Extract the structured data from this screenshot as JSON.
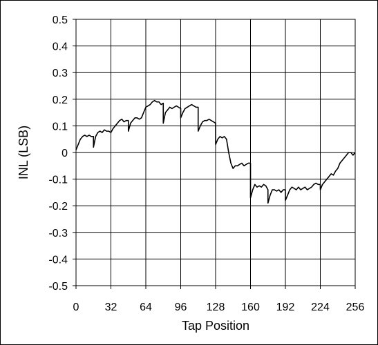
{
  "chart_data": {
    "type": "line",
    "title": "",
    "xlabel": "Tap Position",
    "ylabel": "INL (LSB)",
    "xlim": [
      0,
      256
    ],
    "ylim": [
      -0.5,
      0.5
    ],
    "grid": true,
    "xticks": [
      "0",
      "32",
      "64",
      "96",
      "128",
      "160",
      "192",
      "224",
      "256"
    ],
    "yticks": [
      "0.5",
      "0.4",
      "0.3",
      "0.2",
      "0.1",
      "0",
      "-0.1",
      "-0.2",
      "-0.3",
      "-0.4",
      "-0.5"
    ],
    "series": [
      {
        "name": "",
        "color": "#000000",
        "x": [
          0,
          2,
          4,
          6,
          8,
          10,
          12,
          14,
          16,
          16,
          18,
          20,
          22,
          24,
          26,
          28,
          30,
          32,
          34,
          36,
          38,
          40,
          42,
          44,
          46,
          48,
          48,
          50,
          52,
          54,
          56,
          58,
          60,
          62,
          64,
          66,
          68,
          70,
          72,
          74,
          76,
          78,
          80,
          80,
          82,
          84,
          86,
          88,
          90,
          92,
          94,
          96,
          96,
          98,
          100,
          102,
          104,
          106,
          108,
          110,
          112,
          112,
          114,
          116,
          118,
          120,
          122,
          124,
          126,
          128,
          128,
          130,
          132,
          134,
          136,
          138,
          140,
          142,
          144,
          146,
          148,
          150,
          152,
          154,
          156,
          158,
          160,
          160,
          162,
          164,
          166,
          168,
          170,
          172,
          174,
          176,
          176,
          178,
          180,
          182,
          184,
          186,
          188,
          190,
          192,
          192,
          194,
          196,
          198,
          200,
          202,
          204,
          206,
          208,
          210,
          212,
          214,
          216,
          218,
          220,
          222,
          224,
          224,
          226,
          228,
          230,
          232,
          234,
          236,
          238,
          240,
          242,
          244,
          246,
          248,
          250,
          252,
          254,
          256
        ],
        "y": [
          0.01,
          0.03,
          0.05,
          0.06,
          0.065,
          0.06,
          0.065,
          0.06,
          0.06,
          0.02,
          0.06,
          0.075,
          0.08,
          0.075,
          0.085,
          0.08,
          0.08,
          0.075,
          0.09,
          0.1,
          0.11,
          0.12,
          0.125,
          0.115,
          0.12,
          0.12,
          0.08,
          0.11,
          0.12,
          0.13,
          0.13,
          0.125,
          0.13,
          0.15,
          0.17,
          0.175,
          0.18,
          0.19,
          0.195,
          0.19,
          0.19,
          0.18,
          0.185,
          0.11,
          0.15,
          0.16,
          0.17,
          0.165,
          0.17,
          0.175,
          0.17,
          0.165,
          0.13,
          0.15,
          0.165,
          0.17,
          0.175,
          0.18,
          0.175,
          0.17,
          0.17,
          0.08,
          0.1,
          0.115,
          0.12,
          0.12,
          0.125,
          0.12,
          0.115,
          0.11,
          0.03,
          0.05,
          0.06,
          0.055,
          0.06,
          0.05,
          0.0,
          -0.04,
          -0.06,
          -0.05,
          -0.05,
          -0.045,
          -0.04,
          -0.05,
          -0.045,
          -0.04,
          -0.04,
          -0.17,
          -0.14,
          -0.12,
          -0.13,
          -0.125,
          -0.13,
          -0.12,
          -0.125,
          -0.14,
          -0.19,
          -0.16,
          -0.14,
          -0.14,
          -0.145,
          -0.14,
          -0.15,
          -0.14,
          -0.14,
          -0.18,
          -0.16,
          -0.14,
          -0.13,
          -0.135,
          -0.14,
          -0.13,
          -0.14,
          -0.135,
          -0.13,
          -0.14,
          -0.135,
          -0.13,
          -0.12,
          -0.115,
          -0.12,
          -0.12,
          -0.14,
          -0.12,
          -0.11,
          -0.1,
          -0.09,
          -0.08,
          -0.085,
          -0.07,
          -0.06,
          -0.04,
          -0.03,
          -0.02,
          -0.01,
          0.0,
          0.0,
          -0.01,
          0.0
        ]
      }
    ]
  }
}
